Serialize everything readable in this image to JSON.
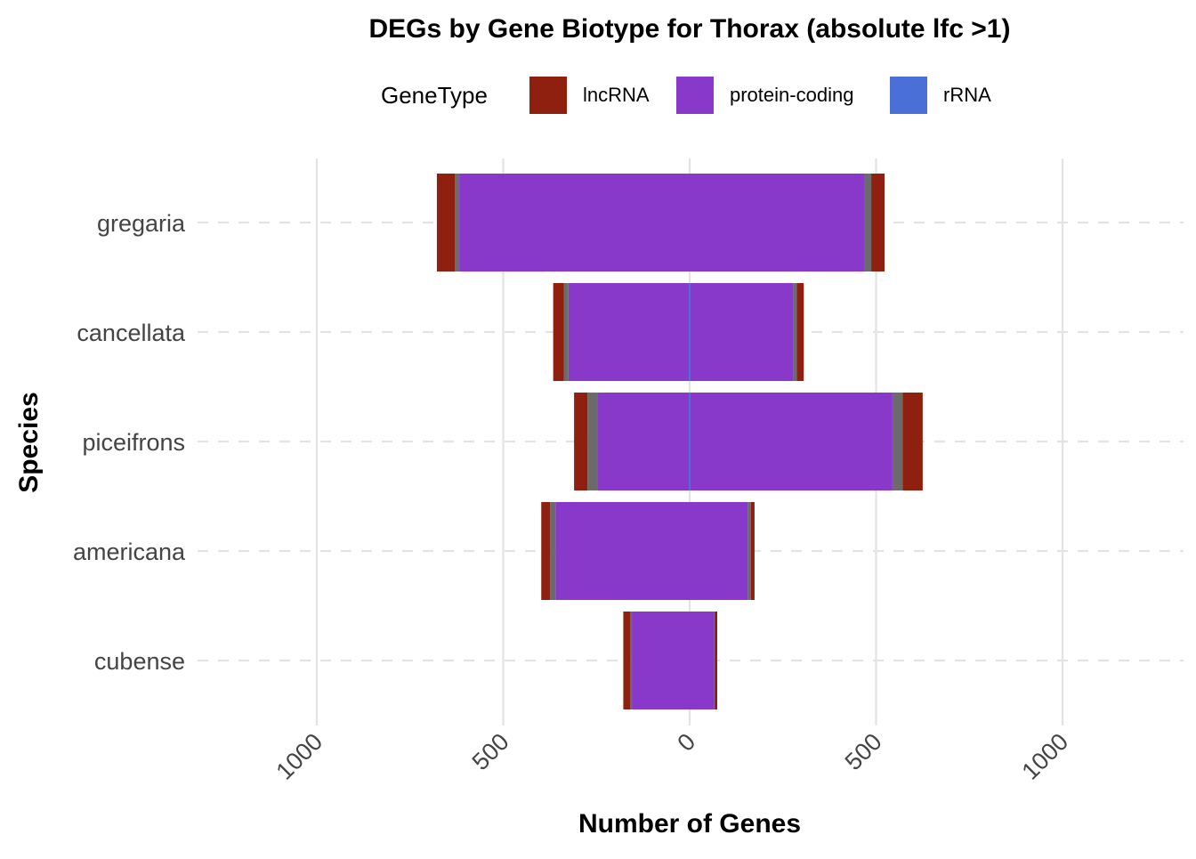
{
  "chart_data": {
    "type": "bar",
    "orientation": "horizontal-diverging-stacked",
    "title": "DEGs by Gene Biotype for Thorax (absolute lfc >1)",
    "xlabel": "Number of Genes",
    "ylabel": "Species",
    "legend": {
      "title": "GeneType",
      "placement": "top",
      "entries": [
        "lncRNA",
        "protein-coding",
        "rRNA"
      ]
    },
    "xlim": [
      -1000,
      1000
    ],
    "x_ticks": [
      -1000,
      -500,
      0,
      500,
      1000
    ],
    "x_tick_labels": [
      "1000",
      "500",
      "0",
      "500",
      "1000"
    ],
    "categories": [
      "gregaria",
      "cancellata",
      "piceifrons",
      "americana",
      "cubense"
    ],
    "colors": {
      "lncRNA": "#8F1F0E",
      "protein-coding": "#8839C9",
      "rRNA": "#4A6FD6",
      "na": "#6B6B6B"
    },
    "series": [
      {
        "name": "protein-coding",
        "down": [
          618,
          325,
          248,
          360,
          155
        ],
        "up": [
          470,
          277,
          544,
          156,
          66
        ]
      },
      {
        "name": "rRNA",
        "down": [
          0,
          0,
          0,
          0,
          0
        ],
        "up": [
          0,
          1,
          1,
          0,
          0
        ]
      },
      {
        "name": "na",
        "down": [
          12,
          12,
          26,
          14,
          4
        ],
        "up": [
          17,
          10,
          27,
          8,
          1
        ]
      },
      {
        "name": "lncRNA",
        "down": [
          48,
          29,
          36,
          24,
          19
        ],
        "up": [
          36,
          19,
          54,
          10,
          7
        ]
      }
    ],
    "grid": true
  }
}
